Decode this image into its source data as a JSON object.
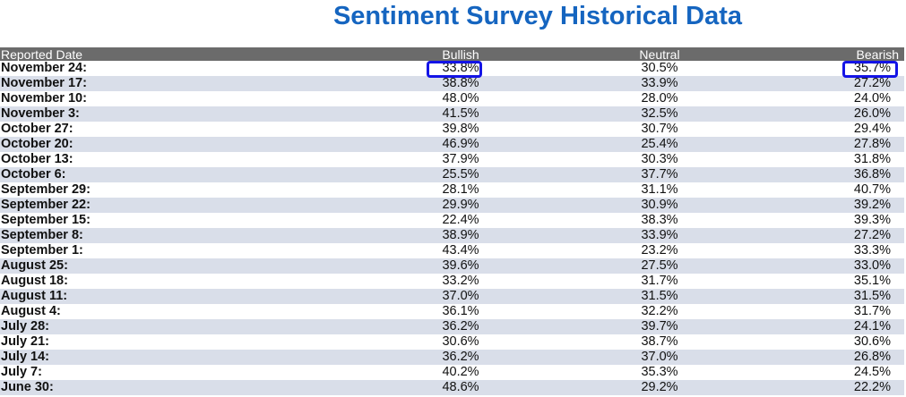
{
  "title": "Sentiment Survey Historical Data",
  "colors": {
    "title": "#1565c0",
    "header_bg": "#6b6b6b",
    "stripe_bg": "#d9dee9",
    "highlight_border": "#1414e6"
  },
  "table": {
    "headers": [
      "Reported Date",
      "Bullish",
      "Neutral",
      "Bearish"
    ],
    "rows": [
      [
        "November 24:",
        "33.8%",
        "30.5%",
        "35.7%"
      ],
      [
        "November 17:",
        "38.8%",
        "33.9%",
        "27.2%"
      ],
      [
        "November 10:",
        "48.0%",
        "28.0%",
        "24.0%"
      ],
      [
        "November 3:",
        "41.5%",
        "32.5%",
        "26.0%"
      ],
      [
        "October 27:",
        "39.8%",
        "30.7%",
        "29.4%"
      ],
      [
        "October 20:",
        "46.9%",
        "25.4%",
        "27.8%"
      ],
      [
        "October 13:",
        "37.9%",
        "30.3%",
        "31.8%"
      ],
      [
        "October 6:",
        "25.5%",
        "37.7%",
        "36.8%"
      ],
      [
        "September 29:",
        "28.1%",
        "31.1%",
        "40.7%"
      ],
      [
        "September 22:",
        "29.9%",
        "30.9%",
        "39.2%"
      ],
      [
        "September 15:",
        "22.4%",
        "38.3%",
        "39.3%"
      ],
      [
        "September 8:",
        "38.9%",
        "33.9%",
        "27.2%"
      ],
      [
        "September 1:",
        "43.4%",
        "23.2%",
        "33.3%"
      ],
      [
        "August 25:",
        "39.6%",
        "27.5%",
        "33.0%"
      ],
      [
        "August 18:",
        "33.2%",
        "31.7%",
        "35.1%"
      ],
      [
        "August 11:",
        "37.0%",
        "31.5%",
        "31.5%"
      ],
      [
        "August 4:",
        "36.1%",
        "32.2%",
        "31.7%"
      ],
      [
        "July 28:",
        "36.2%",
        "39.7%",
        "24.1%"
      ],
      [
        "July 21:",
        "30.6%",
        "38.7%",
        "30.6%"
      ],
      [
        "July 14:",
        "36.2%",
        "37.0%",
        "26.8%"
      ],
      [
        "July 7:",
        "40.2%",
        "35.3%",
        "24.5%"
      ],
      [
        "June 30:",
        "48.6%",
        "29.2%",
        "22.2%"
      ]
    ]
  }
}
